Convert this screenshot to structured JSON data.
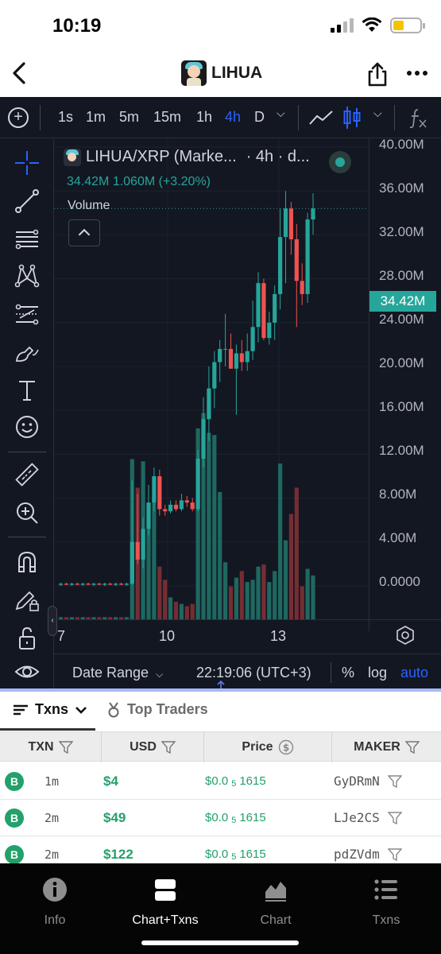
{
  "status_bar": {
    "time": "10:19"
  },
  "header": {
    "title": "LIHUA"
  },
  "timeframes": [
    "1s",
    "1m",
    "5m",
    "15m",
    "1h",
    "4h",
    "D"
  ],
  "active_timeframe": "4h",
  "legend": {
    "symbol": "LIHUA/XRP (Marke...",
    "interval": "· 4h · d...",
    "ohlc_line": "34.42M  1.060M (+3.20%)",
    "volume_label": "Volume"
  },
  "price_axis": {
    "labels": [
      "40.00M",
      "36.00M",
      "32.00M",
      "28.00M",
      "24.00M",
      "20.00M",
      "16.00M",
      "12.00M",
      "8.00M",
      "4.00M",
      "0.0000"
    ],
    "last_price": "34.42M"
  },
  "time_axis": {
    "labels": [
      "7",
      "10",
      "13"
    ]
  },
  "chart_bottom": {
    "date_range": "Date Range",
    "clock": "22:19:06 (UTC+3)",
    "percent": "%",
    "log": "log",
    "auto": "auto"
  },
  "tabs": {
    "txns": "Txns",
    "top_traders": "Top Traders"
  },
  "table": {
    "headers": {
      "txn": "TXN",
      "usd": "USD",
      "price": "Price",
      "maker": "MAKER"
    },
    "rows": [
      {
        "type": "B",
        "age": "1m",
        "usd": "$4",
        "price_prefix": "$0.0",
        "price_zeros": "5",
        "price_digits": "1615",
        "maker": "GyDRmN"
      },
      {
        "type": "B",
        "age": "2m",
        "usd": "$49",
        "price_prefix": "$0.0",
        "price_zeros": "5",
        "price_digits": "1615",
        "maker": "LJe2CS"
      },
      {
        "type": "B",
        "age": "2m",
        "usd": "$122",
        "price_prefix": "$0.0",
        "price_zeros": "5",
        "price_digits": "1615",
        "maker": "pdZVdm"
      }
    ]
  },
  "nav": {
    "info": "Info",
    "chart_txns": "Chart+Txns",
    "chart": "Chart",
    "txns": "Txns"
  },
  "colors": {
    "up": "#26a69a",
    "down": "#ef5350",
    "accent": "#2962ff",
    "buy": "#22a16b"
  },
  "chart_data": {
    "type": "candlestick",
    "y_unit": "price (M)",
    "ylim": [
      0,
      40
    ],
    "candles": [
      {
        "o": 0.1,
        "h": 0.3,
        "l": 0.0,
        "c": 0.2
      },
      {
        "o": 0.2,
        "h": 0.3,
        "l": 0.1,
        "c": 0.1
      },
      {
        "o": 0.1,
        "h": 0.3,
        "l": 0.0,
        "c": 0.2
      },
      {
        "o": 0.2,
        "h": 0.3,
        "l": 0.1,
        "c": 0.1
      },
      {
        "o": 0.1,
        "h": 0.3,
        "l": 0.0,
        "c": 0.2
      },
      {
        "o": 0.2,
        "h": 0.3,
        "l": 0.1,
        "c": 0.1
      },
      {
        "o": 0.1,
        "h": 0.3,
        "l": 0.0,
        "c": 0.2
      },
      {
        "o": 0.2,
        "h": 0.3,
        "l": 0.1,
        "c": 0.1
      },
      {
        "o": 0.1,
        "h": 0.3,
        "l": 0.0,
        "c": 0.2
      },
      {
        "o": 0.2,
        "h": 0.3,
        "l": 0.1,
        "c": 0.1
      },
      {
        "o": 0.1,
        "h": 0.3,
        "l": 0.0,
        "c": 0.2
      },
      {
        "o": 0.2,
        "h": 0.3,
        "l": 0.1,
        "c": 0.1
      },
      {
        "o": 0.1,
        "h": 0.3,
        "l": 0.0,
        "c": 0.2
      },
      {
        "o": 0.2,
        "h": 9.6,
        "l": 0.1,
        "c": 4.0
      },
      {
        "o": 4.0,
        "h": 8.4,
        "l": 2.0,
        "c": 2.4
      },
      {
        "o": 2.4,
        "h": 6.2,
        "l": 1.6,
        "c": 5.2
      },
      {
        "o": 5.2,
        "h": 9.2,
        "l": 4.6,
        "c": 7.6
      },
      {
        "o": 7.6,
        "h": 10.8,
        "l": 6.8,
        "c": 10.0
      },
      {
        "o": 10.0,
        "h": 10.6,
        "l": 6.4,
        "c": 7.0
      },
      {
        "o": 7.0,
        "h": 7.4,
        "l": 6.4,
        "c": 6.8
      },
      {
        "o": 6.8,
        "h": 7.8,
        "l": 6.6,
        "c": 7.4
      },
      {
        "o": 7.4,
        "h": 7.8,
        "l": 6.8,
        "c": 7.0
      },
      {
        "o": 7.0,
        "h": 8.4,
        "l": 6.8,
        "c": 7.8
      },
      {
        "o": 7.8,
        "h": 8.2,
        "l": 7.2,
        "c": 7.6
      },
      {
        "o": 7.6,
        "h": 8.0,
        "l": 6.8,
        "c": 7.0
      },
      {
        "o": 7.0,
        "h": 12.4,
        "l": 6.8,
        "c": 11.6
      },
      {
        "o": 11.6,
        "h": 17.2,
        "l": 10.8,
        "c": 15.2
      },
      {
        "o": 15.2,
        "h": 20.0,
        "l": 13.2,
        "c": 18.0
      },
      {
        "o": 18.0,
        "h": 21.4,
        "l": 16.2,
        "c": 20.4
      },
      {
        "o": 20.4,
        "h": 22.4,
        "l": 18.6,
        "c": 21.6
      },
      {
        "o": 21.6,
        "h": 24.8,
        "l": 20.0,
        "c": 21.6
      },
      {
        "o": 21.6,
        "h": 23.0,
        "l": 19.8,
        "c": 19.8
      },
      {
        "o": 19.8,
        "h": 22.0,
        "l": 15.6,
        "c": 21.2
      },
      {
        "o": 21.2,
        "h": 22.4,
        "l": 19.6,
        "c": 20.4
      },
      {
        "o": 20.4,
        "h": 23.0,
        "l": 19.6,
        "c": 21.4
      },
      {
        "o": 21.4,
        "h": 26.0,
        "l": 20.6,
        "c": 23.6
      },
      {
        "o": 23.6,
        "h": 28.6,
        "l": 22.2,
        "c": 27.6
      },
      {
        "o": 27.6,
        "h": 28.0,
        "l": 22.4,
        "c": 22.6
      },
      {
        "o": 22.6,
        "h": 25.0,
        "l": 22.0,
        "c": 24.0
      },
      {
        "o": 24.0,
        "h": 27.4,
        "l": 22.4,
        "c": 26.6
      },
      {
        "o": 26.6,
        "h": 34.4,
        "l": 25.2,
        "c": 31.8
      },
      {
        "o": 31.8,
        "h": 36.0,
        "l": 27.6,
        "c": 34.4
      },
      {
        "o": 34.4,
        "h": 35.0,
        "l": 30.2,
        "c": 31.6
      },
      {
        "o": 31.6,
        "h": 33.0,
        "l": 23.6,
        "c": 27.8
      },
      {
        "o": 27.8,
        "h": 29.4,
        "l": 25.6,
        "c": 26.6
      },
      {
        "o": 26.6,
        "h": 34.0,
        "l": 25.8,
        "c": 33.4
      },
      {
        "o": 33.4,
        "h": 35.8,
        "l": 32.0,
        "c": 34.4
      }
    ],
    "volume": [
      0.2,
      0.2,
      0.2,
      0.2,
      0.2,
      0.2,
      0.2,
      0.2,
      0.2,
      0.2,
      0.2,
      0.2,
      0.2,
      14.6,
      12.0,
      14.4,
      10.6,
      11.2,
      4.8,
      3.6,
      2.0,
      1.6,
      1.4,
      1.2,
      1.4,
      17.4,
      18.8,
      17.0,
      16.8,
      11.6,
      5.2,
      3.0,
      3.8,
      4.4,
      3.4,
      3.6,
      4.8,
      5.0,
      3.4,
      4.4,
      14.2,
      7.2,
      9.6,
      12.0,
      3.0,
      4.6,
      4.0
    ],
    "volume_scale_max": 40
  }
}
